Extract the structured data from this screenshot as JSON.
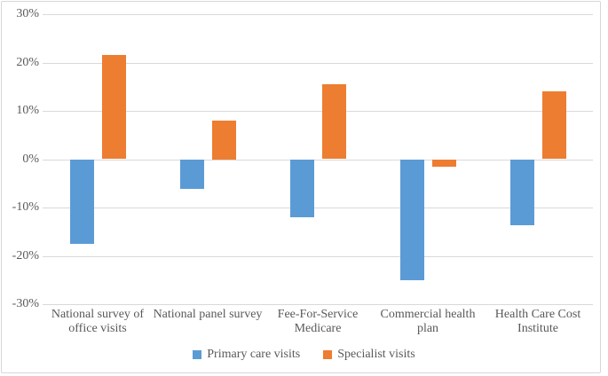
{
  "chart_data": {
    "type": "bar",
    "title": "",
    "categories": [
      "National survey of office visits",
      "National panel survey",
      "Fee-For-Service Medicare",
      "Commercial health plan",
      "Health Care Cost Institute"
    ],
    "series": [
      {
        "name": "Primary care visits",
        "color": "#5B9BD5",
        "values": [
          -17.5,
          -6,
          -12,
          -25,
          -13.5
        ]
      },
      {
        "name": "Specialist visits",
        "color": "#ED7D31",
        "values": [
          21.5,
          8,
          15.5,
          -1.5,
          14
        ]
      }
    ],
    "yticks": [
      {
        "value": 30,
        "label": "30%"
      },
      {
        "value": 20,
        "label": "20%"
      },
      {
        "value": 10,
        "label": "10%"
      },
      {
        "value": 0,
        "label": "0%"
      },
      {
        "value": -10,
        "label": "-10%"
      },
      {
        "value": -20,
        "label": "-20%"
      },
      {
        "value": -30,
        "label": "-30%"
      }
    ],
    "ylim": [
      -30,
      30
    ],
    "xlabel": "",
    "ylabel": "",
    "grid": "horizontal",
    "legend_position": "bottom"
  },
  "colors": {
    "background": "#FFFFFF",
    "gridline": "#D9D9D9",
    "text": "#595959",
    "frame_border": "#D7D7D7"
  }
}
